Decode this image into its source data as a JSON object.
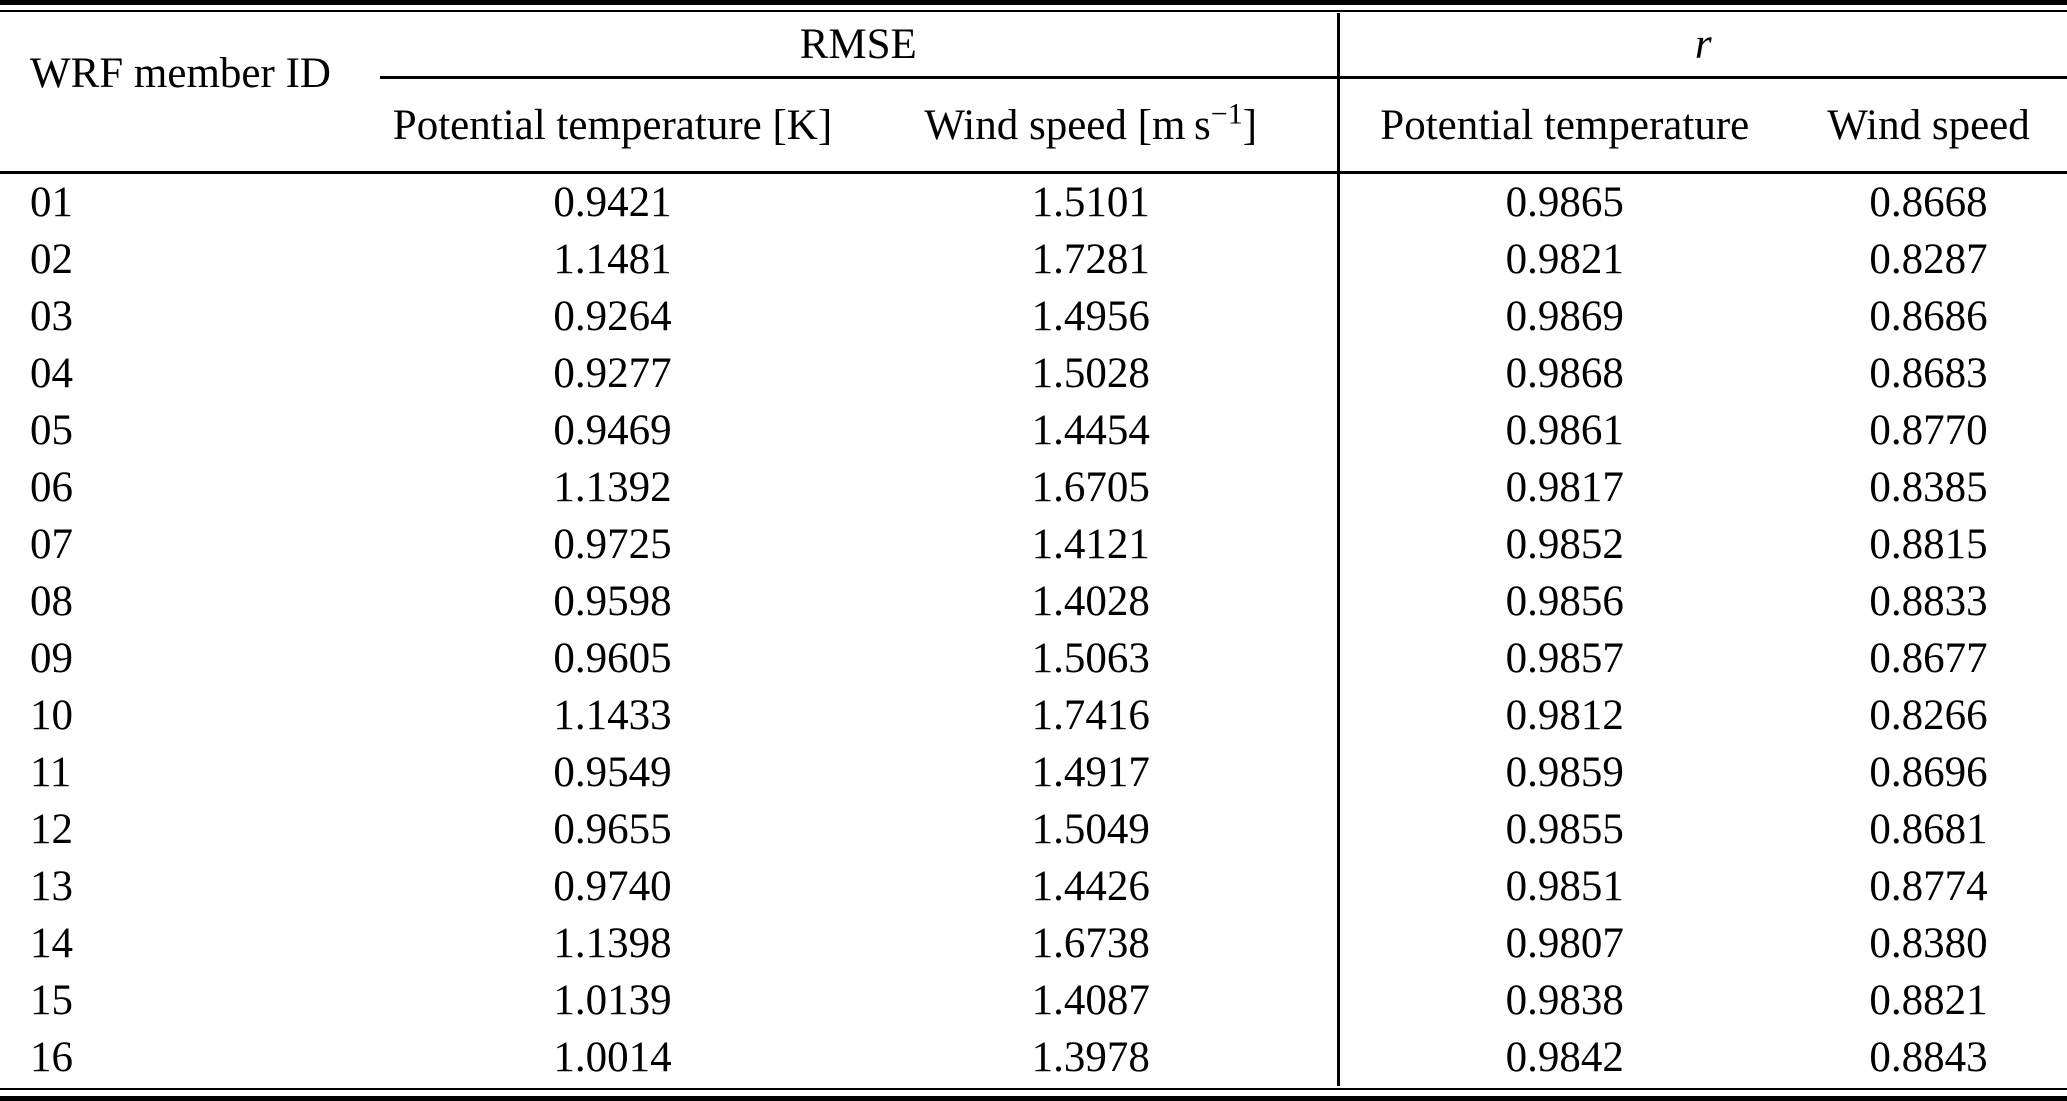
{
  "table": {
    "header": {
      "id_label": "WRF member ID",
      "rmse_label": "RMSE",
      "r_label": "r",
      "rmse_sub1": "Potential temperature [K]",
      "rmse_sub2_pre": "Wind speed [m s",
      "rmse_sub2_sup": "−1",
      "rmse_sub2_post": "]",
      "r_sub1": "Potential temperature",
      "r_sub2": "Wind speed"
    },
    "rows": [
      {
        "id": "01",
        "rmse_pt": "0.9421",
        "rmse_ws": "1.5101",
        "r_pt": "0.9865",
        "r_ws": "0.8668"
      },
      {
        "id": "02",
        "rmse_pt": "1.1481",
        "rmse_ws": "1.7281",
        "r_pt": "0.9821",
        "r_ws": "0.8287"
      },
      {
        "id": "03",
        "rmse_pt": "0.9264",
        "rmse_ws": "1.4956",
        "r_pt": "0.9869",
        "r_ws": "0.8686"
      },
      {
        "id": "04",
        "rmse_pt": "0.9277",
        "rmse_ws": "1.5028",
        "r_pt": "0.9868",
        "r_ws": "0.8683"
      },
      {
        "id": "05",
        "rmse_pt": "0.9469",
        "rmse_ws": "1.4454",
        "r_pt": "0.9861",
        "r_ws": "0.8770"
      },
      {
        "id": "06",
        "rmse_pt": "1.1392",
        "rmse_ws": "1.6705",
        "r_pt": "0.9817",
        "r_ws": "0.8385"
      },
      {
        "id": "07",
        "rmse_pt": "0.9725",
        "rmse_ws": "1.4121",
        "r_pt": "0.9852",
        "r_ws": "0.8815"
      },
      {
        "id": "08",
        "rmse_pt": "0.9598",
        "rmse_ws": "1.4028",
        "r_pt": "0.9856",
        "r_ws": "0.8833"
      },
      {
        "id": "09",
        "rmse_pt": "0.9605",
        "rmse_ws": "1.5063",
        "r_pt": "0.9857",
        "r_ws": "0.8677"
      },
      {
        "id": "10",
        "rmse_pt": "1.1433",
        "rmse_ws": "1.7416",
        "r_pt": "0.9812",
        "r_ws": "0.8266"
      },
      {
        "id": "11",
        "rmse_pt": "0.9549",
        "rmse_ws": "1.4917",
        "r_pt": "0.9859",
        "r_ws": "0.8696"
      },
      {
        "id": "12",
        "rmse_pt": "0.9655",
        "rmse_ws": "1.5049",
        "r_pt": "0.9855",
        "r_ws": "0.8681"
      },
      {
        "id": "13",
        "rmse_pt": "0.9740",
        "rmse_ws": "1.4426",
        "r_pt": "0.9851",
        "r_ws": "0.8774"
      },
      {
        "id": "14",
        "rmse_pt": "1.1398",
        "rmse_ws": "1.6738",
        "r_pt": "0.9807",
        "r_ws": "0.8380"
      },
      {
        "id": "15",
        "rmse_pt": "1.0139",
        "rmse_ws": "1.4087",
        "r_pt": "0.9838",
        "r_ws": "0.8821"
      },
      {
        "id": "16",
        "rmse_pt": "1.0014",
        "rmse_ws": "1.3978",
        "r_pt": "0.9842",
        "r_ws": "0.8843"
      }
    ]
  }
}
